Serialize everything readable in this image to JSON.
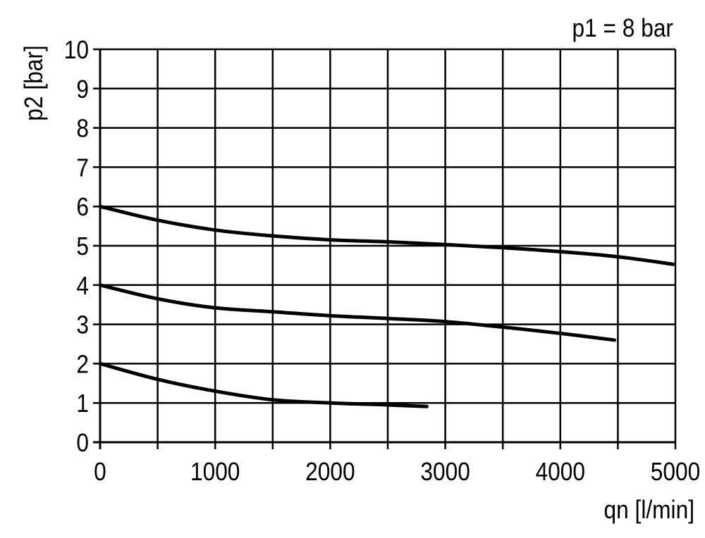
{
  "chart_data": {
    "type": "line",
    "annotation": "p1 = 8 bar",
    "xlabel": "qn [l/min]",
    "ylabel": "p2 [bar]",
    "xlim": [
      0,
      5000
    ],
    "ylim": [
      0,
      10
    ],
    "x_ticks": [
      0,
      1000,
      2000,
      3000,
      4000,
      5000
    ],
    "x_tick_labels": [
      "0",
      "1000",
      "2000",
      "3000",
      "4000",
      "5000"
    ],
    "y_ticks": [
      0,
      1,
      2,
      3,
      4,
      5,
      6,
      7,
      8,
      9,
      10
    ],
    "y_tick_labels": [
      "0",
      "1",
      "2",
      "3",
      "4",
      "5",
      "6",
      "7",
      "8",
      "9",
      "10"
    ],
    "grid": true,
    "grid_x_step": 500,
    "grid_y_step": 1,
    "line_color": "#000000",
    "series": [
      {
        "x": [
          0,
          500,
          1000,
          1500,
          2000,
          2500,
          3000,
          3500,
          4000,
          4500,
          4980
        ],
        "y": [
          6.0,
          5.65,
          5.4,
          5.25,
          5.15,
          5.1,
          5.03,
          4.95,
          4.85,
          4.72,
          4.53
        ]
      },
      {
        "x": [
          0,
          500,
          1000,
          1500,
          2000,
          2500,
          3000,
          3500,
          4000,
          4470
        ],
        "y": [
          4.0,
          3.65,
          3.42,
          3.32,
          3.22,
          3.15,
          3.07,
          2.93,
          2.77,
          2.6
        ]
      },
      {
        "x": [
          0,
          500,
          1000,
          1500,
          2000,
          2500,
          2840
        ],
        "y": [
          2.0,
          1.6,
          1.3,
          1.08,
          1.0,
          0.95,
          0.91
        ]
      }
    ]
  }
}
